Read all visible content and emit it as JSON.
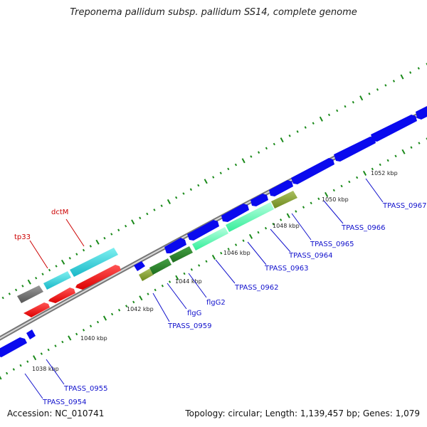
{
  "title": "Treponema pallidum subsp. pallidum SS14, complete genome",
  "footer": {
    "accession": "Accession: NC_010741",
    "summary": "Topology: circular; Length: 1,139,457 bp; Genes: 1,079"
  },
  "colors": {
    "backbone": "#8c8c8c",
    "tick": "#1a8a1a",
    "forward_gene": "#0a0aee",
    "callout_forward": "#1010cc",
    "callout_reverse": "#cc0000"
  },
  "scale_labels": [
    "1038 kbp",
    "1040 kbp",
    "1042 kbp",
    "1044 kbp",
    "1046 kbp",
    "1048 kbp",
    "1050 kbp",
    "1052 kbp"
  ],
  "callouts": [
    "TPASS_0954",
    "TPASS_0955",
    "TPASS_0959",
    "flgG",
    "flgG2",
    "TPASS_0962",
    "TPASS_0963",
    "TPASS_0964",
    "TPASS_0965",
    "TPASS_0966",
    "TPASS_0967",
    "tp33",
    "dctM"
  ]
}
